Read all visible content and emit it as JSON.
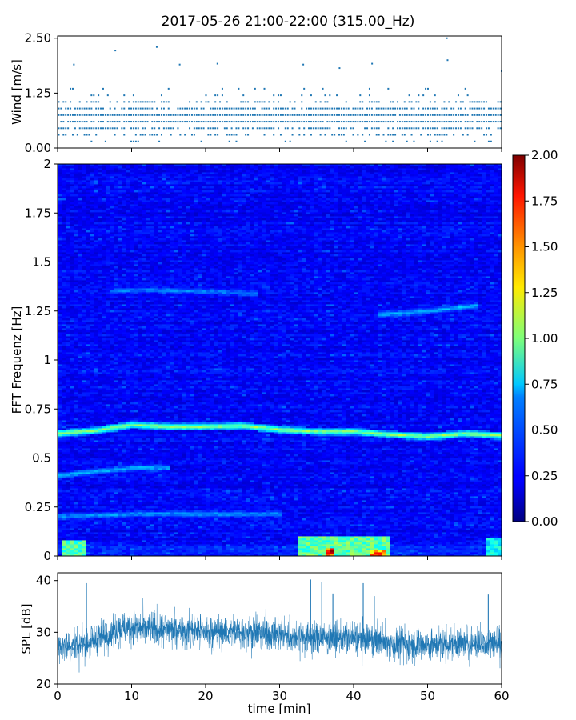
{
  "figure": {
    "title": "2017-05-26 21:00-22:00 (315.00_Hz)"
  },
  "chart_data": [
    {
      "type": "scatter",
      "panel": "wind",
      "ylabel": "Wind [m/s]",
      "xlim": [
        0,
        60
      ],
      "ylim": [
        0,
        2.55
      ],
      "yticks": [
        "0.00",
        "1.25",
        "2.50"
      ],
      "ytick_values": [
        0,
        1.25,
        2.5
      ],
      "series_color": "#1f77b4",
      "levels_m_s": [
        0.15,
        0.3,
        0.45,
        0.6,
        0.75,
        0.9,
        1.05,
        1.2,
        1.35,
        1.5,
        1.65
      ],
      "outliers": [
        {
          "x": 2.2,
          "y": 1.9
        },
        {
          "x": 7.8,
          "y": 2.22
        },
        {
          "x": 13.4,
          "y": 2.3
        },
        {
          "x": 16.5,
          "y": 1.9
        },
        {
          "x": 21.6,
          "y": 1.92
        },
        {
          "x": 33.2,
          "y": 1.9
        },
        {
          "x": 38.1,
          "y": 1.82
        },
        {
          "x": 42.5,
          "y": 1.92
        },
        {
          "x": 52.6,
          "y": 2.5
        },
        {
          "x": 52.7,
          "y": 2.0
        },
        {
          "x": 60.0,
          "y": 1.75
        }
      ]
    },
    {
      "type": "heatmap",
      "panel": "spectrogram",
      "ylabel": "FFT Frequenz [Hz]",
      "xlim": [
        0,
        60
      ],
      "ylim": [
        0,
        2
      ],
      "yticks": [
        "0",
        "0.25",
        "0.5",
        "0.75",
        "1",
        "1.25",
        "1.5",
        "1.75",
        "2"
      ],
      "ytick_values": [
        0,
        0.25,
        0.5,
        0.75,
        1,
        1.25,
        1.5,
        1.75,
        2
      ],
      "colormap": "jet",
      "colorbar_ticks": [
        "0.00",
        "0.25",
        "0.50",
        "0.75",
        "1.00",
        "1.25",
        "1.50",
        "1.75",
        "2.00"
      ],
      "colorbar_tick_values": [
        0,
        0.25,
        0.5,
        0.75,
        1,
        1.25,
        1.5,
        1.75,
        2
      ],
      "clim": [
        0,
        2
      ],
      "ridges": [
        {
          "points": [
            [
              0,
              0.625
            ],
            [
              5,
              0.64
            ],
            [
              10,
              0.67
            ],
            [
              15,
              0.66
            ],
            [
              20,
              0.66
            ],
            [
              25,
              0.665
            ],
            [
              30,
              0.645
            ],
            [
              35,
              0.635
            ],
            [
              40,
              0.635
            ],
            [
              45,
              0.62
            ],
            [
              50,
              0.61
            ],
            [
              55,
              0.625
            ],
            [
              60,
              0.615
            ]
          ],
          "level": 1.0
        },
        {
          "points": [
            [
              0,
              0.41
            ],
            [
              5,
              0.43
            ],
            [
              10,
              0.45
            ],
            [
              15,
              0.45
            ]
          ],
          "level": 0.55
        },
        {
          "points": [
            [
              0,
              0.2
            ],
            [
              10,
              0.215
            ],
            [
              20,
              0.215
            ],
            [
              30,
              0.215
            ]
          ],
          "level": 0.5
        },
        {
          "points": [
            [
              7,
              1.35
            ],
            [
              12,
              1.36
            ],
            [
              27,
              1.34
            ]
          ],
          "level": 0.45
        },
        {
          "points": [
            [
              43,
              1.23
            ],
            [
              50,
              1.25
            ],
            [
              57,
              1.28
            ]
          ],
          "level": 0.55
        }
      ],
      "hotspots": [
        {
          "x0": 0.5,
          "x1": 4,
          "f0": 0,
          "f1": 0.08,
          "level": 0.95
        },
        {
          "x0": 32.5,
          "x1": 45,
          "f0": 0,
          "f1": 0.1,
          "level": 1.0
        },
        {
          "x0": 36,
          "x1": 37.5,
          "f0": 0,
          "f1": 0.04,
          "level": 1.8
        },
        {
          "x0": 42,
          "x1": 44.5,
          "f0": 0,
          "f1": 0.03,
          "level": 1.6
        },
        {
          "x0": 58,
          "x1": 60,
          "f0": 0,
          "f1": 0.09,
          "level": 0.8
        }
      ]
    },
    {
      "type": "line",
      "panel": "spl",
      "ylabel": "SPL [dB]",
      "xlabel": "time [min]",
      "xlim": [
        0,
        60
      ],
      "ylim": [
        20,
        41.5
      ],
      "yticks": [
        "20",
        "30",
        "40"
      ],
      "ytick_values": [
        20,
        30,
        40
      ],
      "xticks": [
        "0",
        "10",
        "20",
        "30",
        "40",
        "50",
        "60"
      ],
      "xtick_values": [
        0,
        10,
        20,
        30,
        40,
        50,
        60
      ],
      "series_color": "#1f77b4",
      "trend": [
        {
          "x": 0,
          "y": 27.5
        },
        {
          "x": 3,
          "y": 27.5
        },
        {
          "x": 5,
          "y": 28.5
        },
        {
          "x": 8,
          "y": 30.5
        },
        {
          "x": 10,
          "y": 31
        },
        {
          "x": 13,
          "y": 30.5
        },
        {
          "x": 17,
          "y": 30.5
        },
        {
          "x": 20,
          "y": 30
        },
        {
          "x": 25,
          "y": 30
        },
        {
          "x": 30,
          "y": 29.5
        },
        {
          "x": 33,
          "y": 29
        },
        {
          "x": 36,
          "y": 29
        },
        {
          "x": 40,
          "y": 28.8
        },
        {
          "x": 43,
          "y": 28.5
        },
        {
          "x": 45,
          "y": 27.8
        },
        {
          "x": 50,
          "y": 27.5
        },
        {
          "x": 55,
          "y": 27.8
        },
        {
          "x": 60,
          "y": 28
        }
      ],
      "spikes": [
        {
          "x": 3.9,
          "y": 39.5
        },
        {
          "x": 34.2,
          "y": 40.2
        },
        {
          "x": 35.7,
          "y": 39.8
        },
        {
          "x": 37.2,
          "y": 37.5
        },
        {
          "x": 41.3,
          "y": 39.5
        },
        {
          "x": 42.8,
          "y": 37.0
        },
        {
          "x": 58.2,
          "y": 37.3
        }
      ]
    }
  ]
}
